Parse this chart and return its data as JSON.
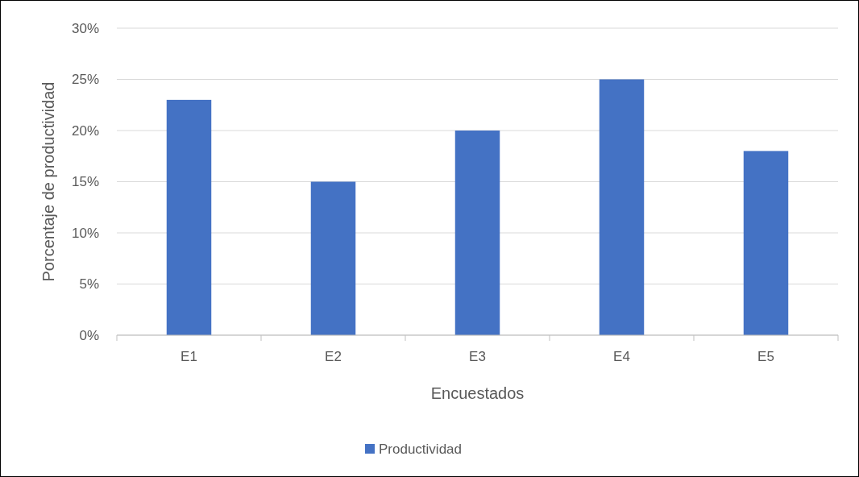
{
  "chart_data": {
    "type": "bar",
    "xlabel": "Encuestados",
    "ylabel": "Porcentaje de productividad",
    "categories": [
      "E1",
      "E2",
      "E3",
      "E4",
      "E5"
    ],
    "series": [
      {
        "name": "Productividad",
        "color": "#4472c4",
        "values": [
          23,
          15,
          20,
          25,
          18
        ]
      }
    ],
    "ylim": [
      0,
      30
    ],
    "yticks": [
      {
        "value": 0,
        "label": "0%"
      },
      {
        "value": 5,
        "label": "5%"
      },
      {
        "value": 10,
        "label": "10%"
      },
      {
        "value": 15,
        "label": "15%"
      },
      {
        "value": 20,
        "label": "20%"
      },
      {
        "value": 25,
        "label": "25%"
      },
      {
        "value": 30,
        "label": "30%"
      }
    ],
    "grid": "y",
    "legend": "bottom"
  }
}
